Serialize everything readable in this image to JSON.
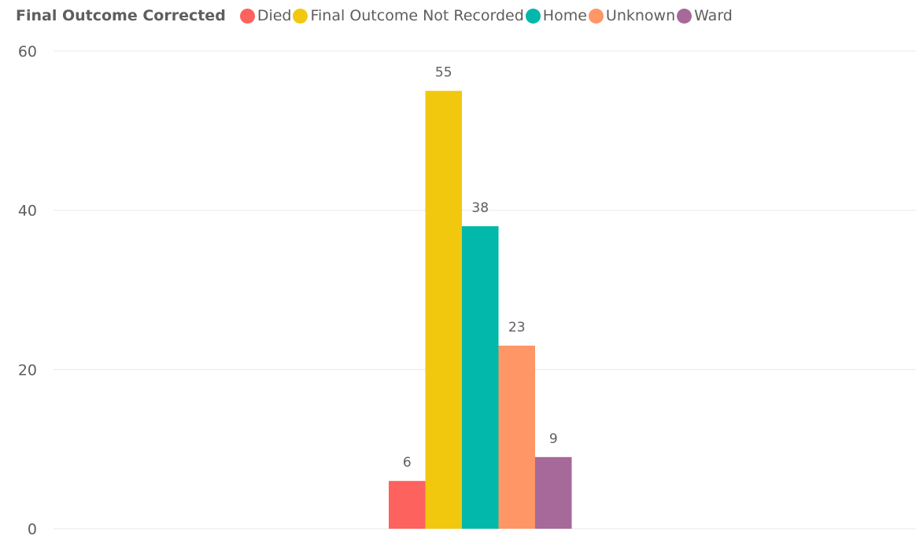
{
  "legend": {
    "title": "Final Outcome Corrected"
  },
  "chart_data": {
    "type": "bar",
    "title": "",
    "xlabel": "",
    "ylabel": "",
    "ylim": [
      0,
      60
    ],
    "yticks": [
      "0",
      "20",
      "40",
      "60"
    ],
    "grid": true,
    "legend_position": "top-left",
    "categories": [
      ""
    ],
    "series": [
      {
        "name": "Died",
        "values": [
          6
        ],
        "color": "#fd625e"
      },
      {
        "name": "Final Outcome Not Recorded",
        "values": [
          55
        ],
        "color": "#f2c80f"
      },
      {
        "name": "Home",
        "values": [
          38
        ],
        "color": "#01b8aa"
      },
      {
        "name": "Unknown",
        "values": [
          23
        ],
        "color": "#fe9666"
      },
      {
        "name": "Ward",
        "values": [
          9
        ],
        "color": "#a66999"
      }
    ]
  }
}
